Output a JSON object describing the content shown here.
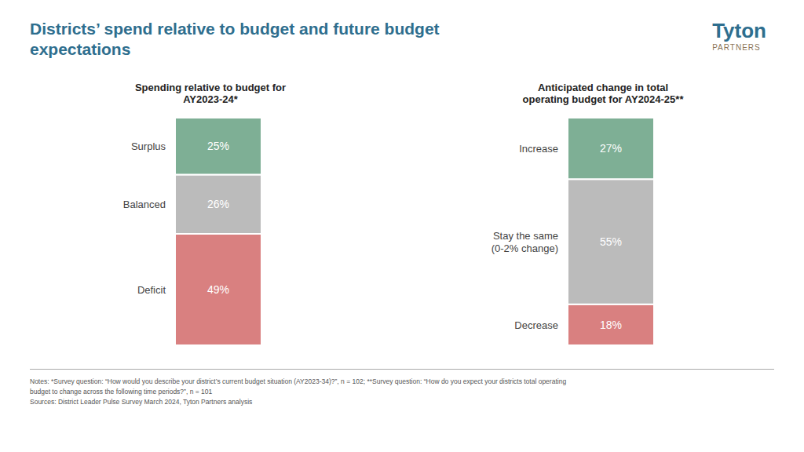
{
  "title": "Districts’ spend relative to budget and future budget\nexpectations",
  "chart_data": [
    {
      "type": "bar",
      "title": "Spending relative to budget for\nAY2023-24*",
      "categories": [
        null
      ],
      "stacked": true,
      "data_labels": true,
      "tick_labels": false,
      "ylim": [
        0,
        100
      ],
      "series": [
        {
          "name": "Deficit",
          "color": "#D98080",
          "values": [
            49
          ],
          "value_labels": [
            "49%"
          ]
        },
        {
          "name": "Balanced",
          "color": "#BBBBBB",
          "values": [
            26
          ],
          "value_labels": [
            "26%"
          ]
        },
        {
          "name": "Surplus",
          "color": "#7EAF95",
          "values": [
            25
          ],
          "value_labels": [
            "25%"
          ]
        }
      ]
    },
    {
      "type": "bar",
      "title": "Anticipated change in total\noperating budget for AY2024-25**",
      "categories": [
        null
      ],
      "stacked": true,
      "data_labels": true,
      "tick_labels": false,
      "ylim": [
        0,
        100
      ],
      "series": [
        {
          "name": "Decrease",
          "color": "#D98080",
          "values": [
            18
          ],
          "value_labels": [
            "18%"
          ]
        },
        {
          "name": "Stay the same\n(0-2% change)",
          "color": "#BBBBBB",
          "values": [
            55
          ],
          "value_labels": [
            "55%"
          ]
        },
        {
          "name": "Increase",
          "color": "#7EAF95",
          "values": [
            27
          ],
          "value_labels": [
            "27%"
          ]
        }
      ]
    }
  ],
  "notes": [
    "Notes: *Survey question: “How would you describe your district’s current budget situation (AY2023-34)?”, n = 102; **Survey question: “How do you expect your districts total operating",
    "budget to change across the following time periods?”, n = 101",
    "Sources: District Leader Pulse Survey March 2024, Tyton Partners analysis"
  ],
  "annotations": [
    "Tyton",
    "PARTNERS"
  ]
}
